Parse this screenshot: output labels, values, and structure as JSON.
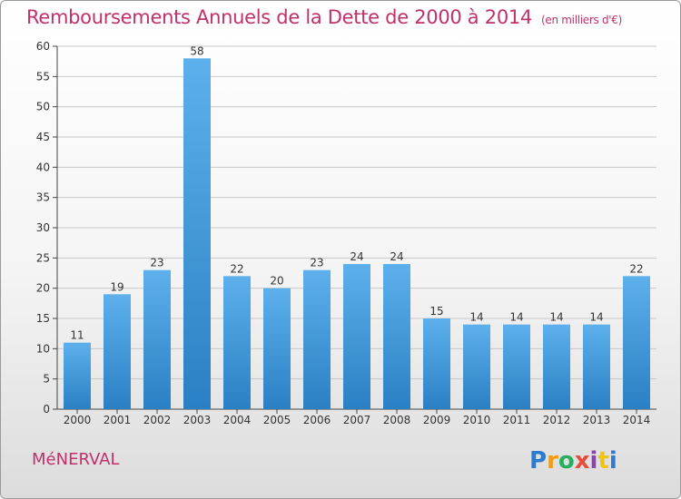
{
  "title": "Remboursements Annuels de la Dette de 2000 à 2014",
  "unit": "(en milliers d'€)",
  "commune": "MéNERVAL",
  "logo": "Proxiti",
  "colors": {
    "title": "#c0306a",
    "bar_light": "#5db0ec",
    "bar_dark": "#2a80c4",
    "grid": "#c8c8c8"
  },
  "chart_data": {
    "type": "bar",
    "title": "Remboursements Annuels de la Dette de 2000 à 2014",
    "subtitle": "(en milliers d'€)",
    "xlabel": "",
    "ylabel": "",
    "categories": [
      "2000",
      "2001",
      "2002",
      "2003",
      "2004",
      "2005",
      "2006",
      "2007",
      "2008",
      "2009",
      "2010",
      "2011",
      "2012",
      "2013",
      "2014"
    ],
    "values": [
      11,
      19,
      23,
      58,
      22,
      20,
      23,
      24,
      24,
      15,
      14,
      14,
      14,
      14,
      22
    ],
    "ylim": [
      0,
      60
    ],
    "yticks": [
      0,
      5,
      10,
      15,
      20,
      25,
      30,
      35,
      40,
      45,
      50,
      55,
      60
    ],
    "grid": true,
    "data_labels": true,
    "legend": "none"
  }
}
